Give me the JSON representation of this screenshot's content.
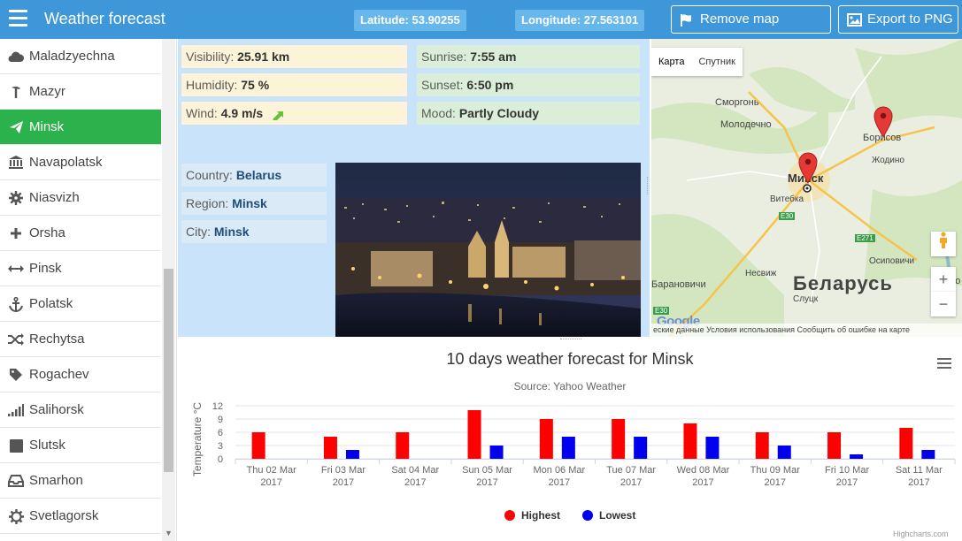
{
  "header": {
    "title": "Weather forecast",
    "latitude": "Latitude: 53.90255",
    "longitude": "Longitude: 27.563101",
    "remove_markers_label": "Remove map markers",
    "export_label": "Export to PNG"
  },
  "sidebar": {
    "items": [
      {
        "label": "Maladzyechna",
        "icon": "cloud-icon"
      },
      {
        "label": "Mazyr",
        "icon": "pickaxe-icon"
      },
      {
        "label": "Minsk",
        "icon": "paper-plane-icon"
      },
      {
        "label": "Navapolatsk",
        "icon": "bank-icon"
      },
      {
        "label": "Niasvizh",
        "icon": "gear-icon"
      },
      {
        "label": "Orsha",
        "icon": "plus-icon"
      },
      {
        "label": "Pinsk",
        "icon": "arrows-horizontal-icon"
      },
      {
        "label": "Polatsk",
        "icon": "anchor-icon"
      },
      {
        "label": "Rechytsa",
        "icon": "shuffle-icon"
      },
      {
        "label": "Rogachev",
        "icon": "tag-icon"
      },
      {
        "label": "Salihorsk",
        "icon": "signal-icon"
      },
      {
        "label": "Slutsk",
        "icon": "square-icon"
      },
      {
        "label": "Smarhon",
        "icon": "inbox-icon"
      },
      {
        "label": "Svetlagorsk",
        "icon": "cog-icon"
      }
    ],
    "active": "Minsk",
    "active_color": "#2cb24c"
  },
  "weather": {
    "visibility_label": "Visibility:",
    "visibility_value": "25.91 km",
    "humidity_label": "Humidity:",
    "humidity_value": "75 %",
    "wind_label": "Wind:",
    "wind_value": "4.9 m/s",
    "sunrise_label": "Sunrise:",
    "sunrise_value": "7:55 am",
    "sunset_label": "Sunset:",
    "sunset_value": "6:50 pm",
    "mood_label": "Mood:",
    "mood_value": "Partly Cloudy"
  },
  "location": {
    "country_label": "Country:",
    "country_value": "Belarus",
    "region_label": "Region:",
    "region_value": "Minsk",
    "city_label": "City:",
    "city_value": "Minsk"
  },
  "map": {
    "tab_map": "Карта",
    "tab_satellite": "Спутник",
    "labels": [
      "Сморгонь",
      "Молодечно",
      "Минск",
      "Витебка",
      "Борисов",
      "Жодино",
      "Несвиж",
      "Слуцк",
      "Барановичи",
      "Осиповичи",
      "Беларусь",
      "Бо"
    ],
    "road_labels": [
      "E30",
      "E271",
      "E30"
    ],
    "footer": "еские данные  Условия использования  Сообщить об ошибке на карте",
    "logo": "Google"
  },
  "chart_data": {
    "type": "bar",
    "title": "10 days weather forecast for Minsk",
    "subtitle": "Source: Yahoo Weather",
    "ylabel": "Temperature °C",
    "ylim": [
      0,
      12
    ],
    "yticks": [
      "0",
      "3",
      "6",
      "9",
      "12"
    ],
    "categories": [
      [
        "Thu 02 Mar",
        "2017"
      ],
      [
        "Fri 03 Mar",
        "2017"
      ],
      [
        "Sat 04 Mar",
        "2017"
      ],
      [
        "Sun 05 Mar",
        "2017"
      ],
      [
        "Mon 06 Mar",
        "2017"
      ],
      [
        "Tue 07 Mar",
        "2017"
      ],
      [
        "Wed 08 Mar",
        "2017"
      ],
      [
        "Thu 09 Mar",
        "2017"
      ],
      [
        "Fri 10 Mar",
        "2017"
      ],
      [
        "Sat 11 Mar",
        "2017"
      ]
    ],
    "series": [
      {
        "name": "Highest",
        "color": "#ff0000",
        "values": [
          6,
          5,
          6,
          11,
          9,
          9,
          8,
          6,
          6,
          7
        ]
      },
      {
        "name": "Lowest",
        "color": "#0000ee",
        "values": [
          null,
          2,
          null,
          3,
          5,
          5,
          5,
          3,
          1,
          2
        ]
      }
    ],
    "legend": "bottom-center",
    "credit": "Highcharts.com"
  }
}
